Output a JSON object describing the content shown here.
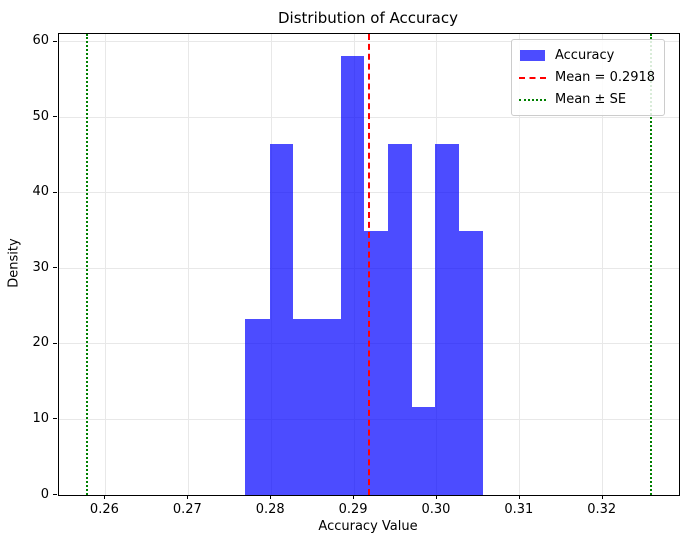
{
  "title": "Distribution of Accuracy",
  "axes": {
    "xlabel": "Accuracy Value",
    "ylabel": "Density"
  },
  "legend": {
    "position": "upper right",
    "entries": [
      {
        "label": "Accuracy",
        "swatch": "blue-filled-patch"
      },
      {
        "label": "Mean = 0.2918",
        "swatch": "red-dashed-line"
      },
      {
        "label": "Mean ± SE",
        "swatch": "green-dotted-line"
      }
    ]
  },
  "chart_data": {
    "type": "bar",
    "subtype": "histogram-density",
    "title": "Distribution of Accuracy",
    "xlabel": "Accuracy Value",
    "ylabel": "Density",
    "bin_edges": [
      0.2769,
      0.2798,
      0.2826,
      0.2855,
      0.2884,
      0.2912,
      0.2941,
      0.297,
      0.2998,
      0.3027,
      0.3056
    ],
    "densities": [
      23.3,
      46.5,
      23.3,
      23.3,
      58.1,
      34.9,
      46.5,
      11.6,
      46.5,
      34.9
    ],
    "counts": [
      2,
      4,
      2,
      2,
      5,
      3,
      4,
      1,
      4,
      3
    ],
    "mean": 0.2918,
    "se": 0.034,
    "mean_line": {
      "x": 0.2918,
      "color": "#ff0000",
      "linestyle": "dashed",
      "label": "Mean = 0.2918"
    },
    "se_lines": {
      "x_values": [
        0.2578,
        0.3258
      ],
      "color": "#008000",
      "linestyle": "dotted",
      "label": "Mean ± SE"
    },
    "bar_color": "#0000ff",
    "bar_alpha": 0.7,
    "xlim": [
      0.2544,
      0.3292
    ],
    "ylim": [
      0,
      61.05
    ],
    "xtick_labels": [
      "0.26",
      "0.27",
      "0.28",
      "0.29",
      "0.30",
      "0.31",
      "0.32"
    ],
    "xtick_values": [
      0.26,
      0.27,
      0.28,
      0.29,
      0.3,
      0.31,
      0.32
    ],
    "ytick_labels": [
      "0",
      "10",
      "20",
      "30",
      "40",
      "50",
      "60"
    ],
    "ytick_values": [
      0,
      10,
      20,
      30,
      40,
      50,
      60
    ],
    "grid": true,
    "legend_position": "upper right"
  }
}
